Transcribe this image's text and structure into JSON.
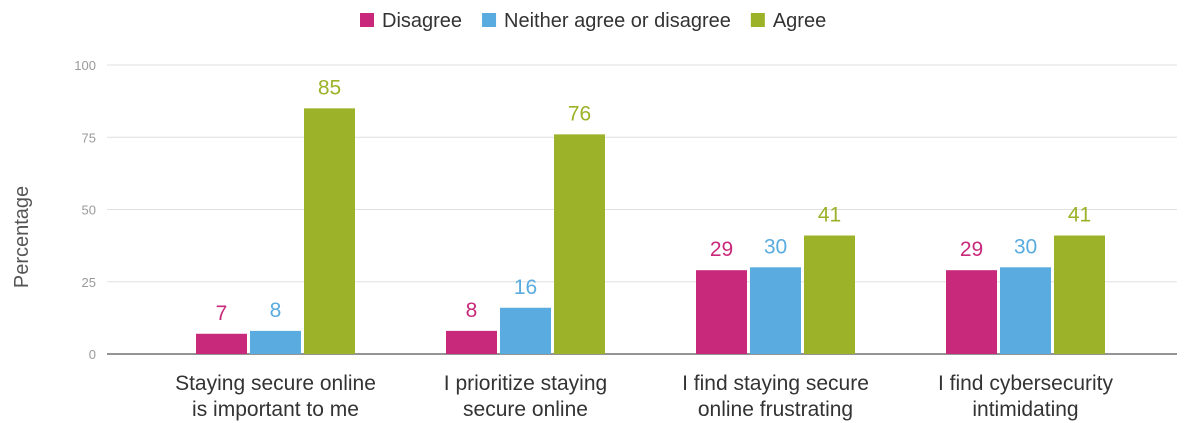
{
  "chart_data": {
    "type": "bar",
    "ylabel": "Percentage",
    "ylim": [
      0,
      100
    ],
    "yticks": [
      0,
      25,
      50,
      75,
      100
    ],
    "grid": true,
    "legend_position": "top-center",
    "categories": [
      [
        "Staying secure online",
        "is important to me"
      ],
      [
        "I prioritize staying",
        "secure online"
      ],
      [
        "I find staying secure",
        "online frustrating"
      ],
      [
        "I find cybersecurity",
        "intimidating"
      ]
    ],
    "series": [
      {
        "name": "Disagree",
        "color": "#c8297b",
        "values": [
          7,
          8,
          29,
          29
        ]
      },
      {
        "name": "Neither agree or disagree",
        "color": "#5aabdf",
        "values": [
          8,
          16,
          30,
          30
        ]
      },
      {
        "name": "Agree",
        "color": "#9cb229",
        "values": [
          85,
          76,
          41,
          41
        ]
      }
    ]
  }
}
